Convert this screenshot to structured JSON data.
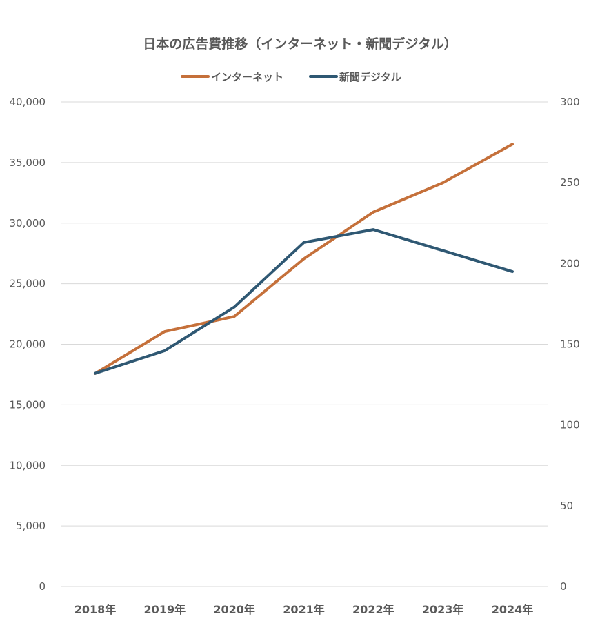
{
  "chart_data": {
    "type": "line",
    "title": "日本の広告費推移（インターネット・新聞デジタル）",
    "categories": [
      "2018年",
      "2019年",
      "2020年",
      "2021年",
      "2022年",
      "2023年",
      "2024年"
    ],
    "series": [
      {
        "name": "インターネット",
        "axis": "left",
        "color": "#C5703A",
        "values": [
          17589,
          21048,
          22290,
          27052,
          30912,
          33330,
          36517
        ]
      },
      {
        "name": "新聞デジタル",
        "axis": "right",
        "color": "#2F5873",
        "values": [
          132,
          146,
          173,
          213,
          221,
          208,
          195
        ]
      }
    ],
    "y_left": {
      "lim": [
        0,
        40000
      ],
      "ticks": [
        0,
        5000,
        10000,
        15000,
        20000,
        25000,
        30000,
        35000,
        40000
      ],
      "tick_labels": [
        "0",
        "5,000",
        "10,000",
        "15,000",
        "20,000",
        "25,000",
        "30,000",
        "35,000",
        "40,000"
      ]
    },
    "y_right": {
      "lim": [
        0,
        300
      ],
      "ticks": [
        0,
        50,
        100,
        150,
        200,
        250,
        300
      ],
      "tick_labels": [
        "0",
        "50",
        "100",
        "150",
        "200",
        "250",
        "300"
      ]
    },
    "grid": true,
    "legend_position": "top-center",
    "xlabel": "",
    "ylabel": ""
  }
}
